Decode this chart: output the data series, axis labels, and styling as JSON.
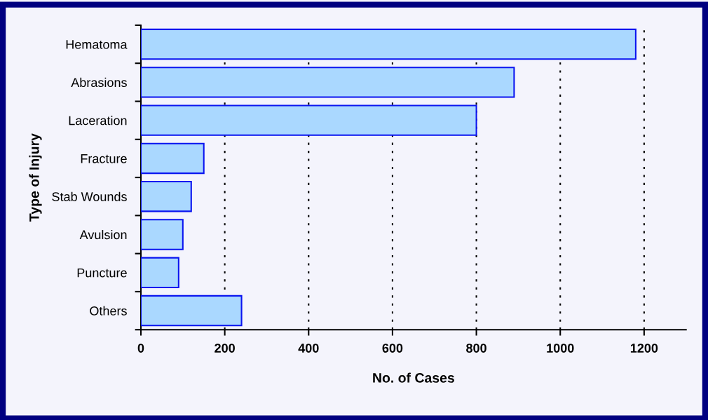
{
  "chart_data": {
    "type": "bar",
    "orientation": "horizontal",
    "xlabel": "No. of Cases",
    "ylabel": "Type of Injury",
    "categories": [
      "Hematoma",
      "Abrasions",
      "Laceration",
      "Fracture",
      "Stab Wounds",
      "Avulsion",
      "Puncture",
      "Others"
    ],
    "values": [
      1180,
      890,
      800,
      150,
      120,
      100,
      90,
      240
    ],
    "color": "#aad8ff",
    "xlim": [
      0,
      1300
    ],
    "xticks": [
      0,
      200,
      400,
      600,
      800,
      1000,
      1200
    ],
    "grid": "x",
    "legend": false
  }
}
